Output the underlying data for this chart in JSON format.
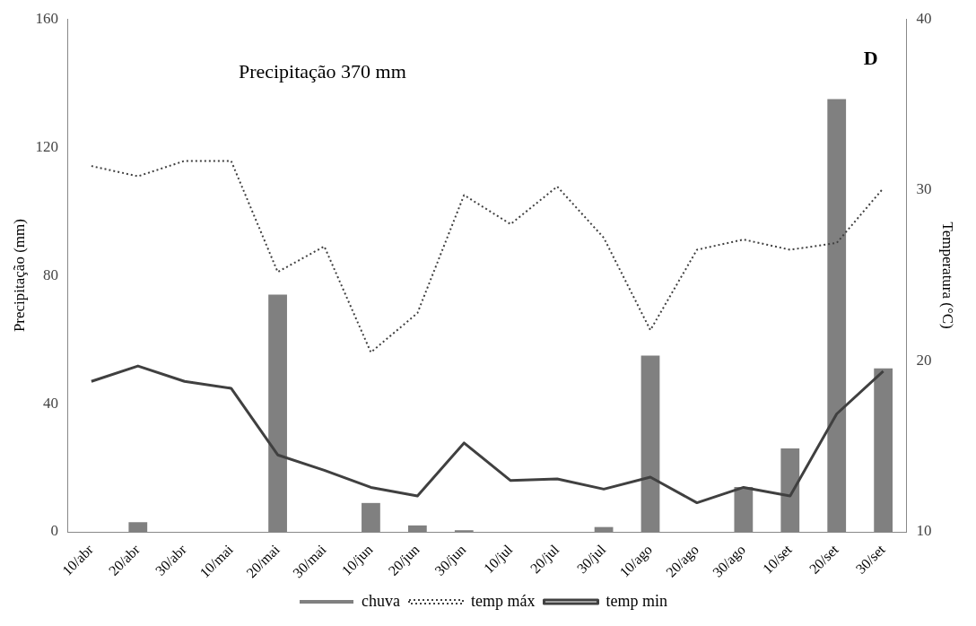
{
  "chart_data": {
    "type": "bar",
    "categories": [
      "10/abr",
      "20/abr",
      "30/abr",
      "10/mai",
      "20/mai",
      "30/mai",
      "10/jun",
      "20/jun",
      "30/jun",
      "10/jul",
      "20/jul",
      "30/jul",
      "10/ago",
      "20/ago",
      "30/ago",
      "10/set",
      "20/set",
      "30/set"
    ],
    "ylabel": "Precipitação (mm)",
    "y2label": "Temperatura (°C)",
    "ylim": [
      0,
      160
    ],
    "yticks": [
      0,
      40,
      80,
      120,
      160
    ],
    "y2lim": [
      10,
      40
    ],
    "y2ticks": [
      10,
      20,
      30,
      40
    ],
    "series": [
      {
        "name": "chuva",
        "color": "#808080",
        "values": [
          0,
          3,
          0,
          0,
          74,
          0,
          9,
          2,
          0.5,
          0,
          0,
          1.5,
          55,
          0,
          14,
          26,
          135,
          51
        ]
      },
      {
        "name": "temp máx",
        "type": "line",
        "axis": "y2",
        "color": "#404040",
        "line_style": "dotted",
        "values": [
          31.4,
          30.8,
          31.7,
          31.7,
          25.2,
          26.7,
          20.5,
          22.8,
          29.7,
          28,
          30.2,
          27.2,
          21.8,
          26.5,
          27.1,
          26.5,
          26.9,
          30.1
        ]
      },
      {
        "name": "temp min",
        "type": "line",
        "axis": "y2",
        "color": "#404040",
        "line_style": "solid",
        "values": [
          18.8,
          19.7,
          18.8,
          18.4,
          14.5,
          13.6,
          12.6,
          12.1,
          15.2,
          13,
          13.1,
          12.5,
          13.2,
          11.7,
          12.6,
          12.1,
          16.9,
          19.4
        ]
      }
    ],
    "annotations": [
      "Precipitação 370 mm",
      "D"
    ],
    "legend": "bottom",
    "grid": false,
    "marker": "none"
  }
}
